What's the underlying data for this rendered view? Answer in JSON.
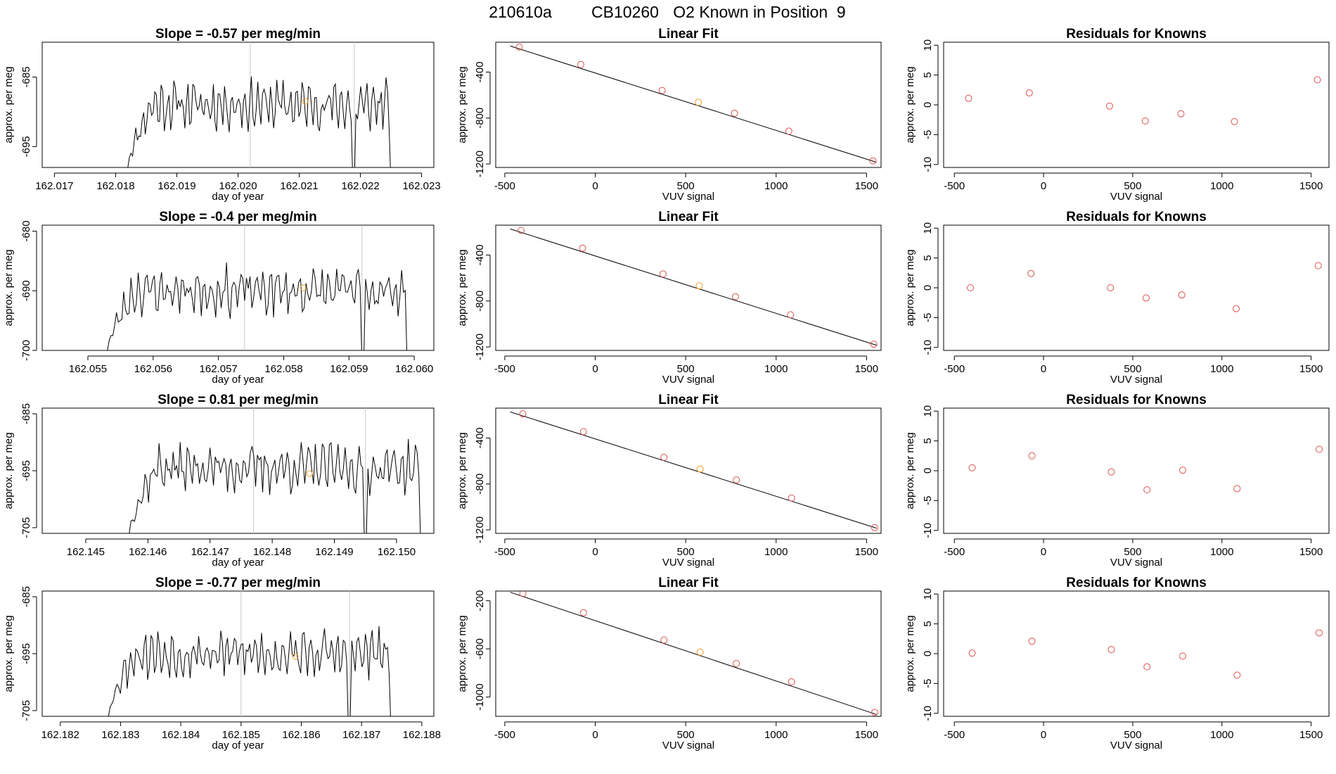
{
  "title": {
    "run_id": "210610a",
    "cylinder": "CB10260",
    "description": "O2 Known in Position  9"
  },
  "colors": {
    "trace": "#000000",
    "guide": "#c8c8c8",
    "point": "#d9534f",
    "highlight": "#f0a020"
  },
  "chart_data": [
    {
      "type": "line",
      "row": 0,
      "col": 0,
      "title": "Slope =  -0.57  per meg/min",
      "xlabel": "day of year",
      "ylabel": "approx. per meg",
      "xlim": [
        162.0168,
        162.0232
      ],
      "ylim": [
        -698,
        -680
      ],
      "xticks": [
        162.017,
        162.018,
        162.019,
        162.02,
        162.021,
        162.022,
        162.023
      ],
      "xtick_labels": [
        "162.017",
        "162.018",
        "162.019",
        "162.020",
        "162.021",
        "162.022",
        "162.023"
      ],
      "yticks": [
        -685,
        -695
      ],
      "ytick_labels": [
        "-685",
        "-695"
      ],
      "vlines": [
        162.0202,
        162.0219
      ],
      "trace_range": [
        162.0182,
        162.0226
      ],
      "trace_center": -689,
      "trace_amp": 2.6,
      "gaps": [
        162.0219
      ],
      "edge_low": -698,
      "seed": 11,
      "highlight_point": {
        "x": 162.0211,
        "y": -688.5
      }
    },
    {
      "type": "scatter",
      "row": 0,
      "col": 1,
      "title": "Linear Fit",
      "xlabel": "VUV signal",
      "ylabel": "approx. per meg",
      "xlim": [
        -550,
        1580
      ],
      "ylim": [
        -1230,
        -140
      ],
      "xticks": [
        -500,
        0,
        500,
        1000,
        1500
      ],
      "xtick_labels": [
        "-500",
        "0",
        "500",
        "1000",
        "1500"
      ],
      "yticks": [
        -400,
        -800,
        -1200
      ],
      "ytick_labels": [
        "-400",
        "-800",
        "-1200"
      ],
      "fit": {
        "x": [
          -470,
          1555
        ],
        "y": [
          -173,
          -1185
        ]
      },
      "points": [
        {
          "x": -420,
          "y": -183
        },
        {
          "x": -80,
          "y": -335
        },
        {
          "x": 370,
          "y": -560
        },
        {
          "x": 570,
          "y": -663,
          "highlight": true
        },
        {
          "x": 770,
          "y": -758
        },
        {
          "x": 1070,
          "y": -914
        },
        {
          "x": 1535,
          "y": -1172
        }
      ]
    },
    {
      "type": "scatter",
      "row": 0,
      "col": 2,
      "title": "Residuals for Knowns",
      "xlabel": "VUV signal",
      "ylabel": "approx. per meg",
      "xlim": [
        -560,
        1600
      ],
      "ylim": [
        -10.5,
        10.5
      ],
      "xticks": [
        -500,
        0,
        500,
        1000,
        1500
      ],
      "xtick_labels": [
        "-500",
        "0",
        "500",
        "1000",
        "1500"
      ],
      "yticks": [
        10,
        5,
        0,
        -5,
        -10
      ],
      "ytick_labels": [
        "10",
        "5",
        "0",
        "-5",
        "-10"
      ],
      "points": [
        {
          "x": -420,
          "y": 1.1
        },
        {
          "x": -80,
          "y": 2.0
        },
        {
          "x": 370,
          "y": -0.2
        },
        {
          "x": 570,
          "y": -2.7
        },
        {
          "x": 770,
          "y": -1.5
        },
        {
          "x": 1070,
          "y": -2.8
        },
        {
          "x": 1535,
          "y": 4.2
        }
      ]
    },
    {
      "type": "line",
      "row": 1,
      "col": 0,
      "title": "Slope =  -0.4  per meg/min",
      "xlabel": "day of year",
      "ylabel": "approx. per meg",
      "xlim": [
        162.0543,
        162.0603
      ],
      "ylim": [
        -700,
        -679
      ],
      "xticks": [
        162.055,
        162.056,
        162.057,
        162.058,
        162.059,
        162.06
      ],
      "xtick_labels": [
        "162.055",
        "162.056",
        "162.057",
        "162.058",
        "162.059",
        "162.060"
      ],
      "yticks": [
        -680,
        -690,
        -700
      ],
      "ytick_labels": [
        "-680",
        "-690",
        "-700"
      ],
      "vlines": [
        162.0574,
        162.0592
      ],
      "trace_range": [
        162.0553,
        162.06
      ],
      "trace_center": -690,
      "trace_amp": 3.0,
      "gaps": [
        162.0592
      ],
      "edge_low": -700,
      "seed": 23,
      "highlight_point": {
        "x": 162.0583,
        "y": -689.5
      }
    },
    {
      "type": "scatter",
      "row": 1,
      "col": 1,
      "title": "Linear Fit",
      "xlabel": "VUV signal",
      "ylabel": "approx. per meg",
      "xlim": [
        -550,
        1580
      ],
      "ylim": [
        -1230,
        -140
      ],
      "xticks": [
        -500,
        0,
        500,
        1000,
        1500
      ],
      "xtick_labels": [
        "-500",
        "0",
        "500",
        "1000",
        "1500"
      ],
      "yticks": [
        -400,
        -800,
        -1200
      ],
      "ytick_labels": [
        "-400",
        "-800",
        "-1200"
      ],
      "fit": {
        "x": [
          -470,
          1555
        ],
        "y": [
          -173,
          -1185
        ]
      },
      "points": [
        {
          "x": -410,
          "y": -186
        },
        {
          "x": -70,
          "y": -340
        },
        {
          "x": 375,
          "y": -565
        },
        {
          "x": 575,
          "y": -668,
          "highlight": true
        },
        {
          "x": 775,
          "y": -762
        },
        {
          "x": 1080,
          "y": -920
        },
        {
          "x": 1540,
          "y": -1176
        }
      ]
    },
    {
      "type": "scatter",
      "row": 1,
      "col": 2,
      "title": "Residuals for Knowns",
      "xlabel": "VUV signal",
      "ylabel": "approx. per meg",
      "xlim": [
        -560,
        1600
      ],
      "ylim": [
        -10.5,
        10.5
      ],
      "xticks": [
        -500,
        0,
        500,
        1000,
        1500
      ],
      "xtick_labels": [
        "-500",
        "0",
        "500",
        "1000",
        "1500"
      ],
      "yticks": [
        10,
        5,
        0,
        -5,
        -10
      ],
      "ytick_labels": [
        "10",
        "5",
        "0",
        "-5",
        "-10"
      ],
      "points": [
        {
          "x": -410,
          "y": 0.0
        },
        {
          "x": -70,
          "y": 2.4
        },
        {
          "x": 375,
          "y": 0.0
        },
        {
          "x": 575,
          "y": -1.7
        },
        {
          "x": 775,
          "y": -1.2
        },
        {
          "x": 1080,
          "y": -3.5
        },
        {
          "x": 1540,
          "y": 3.7
        }
      ]
    },
    {
      "type": "line",
      "row": 2,
      "col": 0,
      "title": "Slope =  0.81  per meg/min",
      "xlabel": "day of year",
      "ylabel": "approx. per meg",
      "xlim": [
        162.1443,
        162.1506
      ],
      "ylim": [
        -706,
        -684
      ],
      "xticks": [
        162.145,
        162.146,
        162.147,
        162.148,
        162.149,
        162.15
      ],
      "xtick_labels": [
        "162.145",
        "162.146",
        "162.147",
        "162.148",
        "162.149",
        "162.150"
      ],
      "yticks": [
        -685,
        -695,
        -705
      ],
      "ytick_labels": [
        "-685",
        "-695",
        "-705"
      ],
      "vlines": [
        162.1477,
        162.1495
      ],
      "trace_range": [
        162.1457,
        162.1505
      ],
      "trace_center": -694.5,
      "trace_amp": 3.2,
      "gaps": [
        162.1495
      ],
      "edge_low": -706,
      "seed": 37,
      "highlight_point": {
        "x": 162.1486,
        "y": -695.5
      }
    },
    {
      "type": "scatter",
      "row": 2,
      "col": 1,
      "title": "Linear Fit",
      "xlabel": "VUV signal",
      "ylabel": "approx. per meg",
      "xlim": [
        -550,
        1580
      ],
      "ylim": [
        -1230,
        -140
      ],
      "xticks": [
        -500,
        0,
        500,
        1000,
        1500
      ],
      "xtick_labels": [
        "-500",
        "0",
        "500",
        "1000",
        "1500"
      ],
      "yticks": [
        -400,
        -800,
        -1200
      ],
      "ytick_labels": [
        "-400",
        "-800",
        "-1200"
      ],
      "fit": {
        "x": [
          -470,
          1555
        ],
        "y": [
          -173,
          -1185
        ]
      },
      "points": [
        {
          "x": -400,
          "y": -190
        },
        {
          "x": -65,
          "y": -345
        },
        {
          "x": 380,
          "y": -568
        },
        {
          "x": 580,
          "y": -670,
          "highlight": true
        },
        {
          "x": 780,
          "y": -765
        },
        {
          "x": 1085,
          "y": -923
        },
        {
          "x": 1545,
          "y": -1180
        }
      ]
    },
    {
      "type": "scatter",
      "row": 2,
      "col": 2,
      "title": "Residuals for Knowns",
      "xlabel": "VUV signal",
      "ylabel": "approx. per meg",
      "xlim": [
        -560,
        1600
      ],
      "ylim": [
        -10.5,
        10.5
      ],
      "xticks": [
        -500,
        0,
        500,
        1000,
        1500
      ],
      "xtick_labels": [
        "-500",
        "0",
        "500",
        "1000",
        "1500"
      ],
      "yticks": [
        10,
        5,
        0,
        -5,
        -10
      ],
      "ytick_labels": [
        "10",
        "5",
        "0",
        "-5",
        "-10"
      ],
      "points": [
        {
          "x": -400,
          "y": 0.5
        },
        {
          "x": -65,
          "y": 2.5
        },
        {
          "x": 380,
          "y": -0.2
        },
        {
          "x": 580,
          "y": -3.2
        },
        {
          "x": 780,
          "y": 0.1
        },
        {
          "x": 1085,
          "y": -3.0
        },
        {
          "x": 1545,
          "y": 3.6
        }
      ]
    },
    {
      "type": "line",
      "row": 3,
      "col": 0,
      "title": "Slope =  -0.77  per meg/min",
      "xlabel": "day of year",
      "ylabel": "approx. per meg",
      "xlim": [
        162.1817,
        162.1882
      ],
      "ylim": [
        -706,
        -684
      ],
      "xticks": [
        162.182,
        162.183,
        162.184,
        162.185,
        162.186,
        162.187,
        162.188
      ],
      "xtick_labels": [
        "162.182",
        "162.183",
        "162.184",
        "162.185",
        "162.186",
        "162.187",
        "162.188"
      ],
      "yticks": [
        -685,
        -695,
        -705
      ],
      "ytick_labels": [
        "-685",
        "-695",
        "-705"
      ],
      "vlines": [
        162.185,
        162.1868
      ],
      "trace_range": [
        162.1828,
        162.1876
      ],
      "trace_center": -695,
      "trace_amp": 3.2,
      "gaps": [
        162.1868
      ],
      "edge_low": -706,
      "seed": 53,
      "highlight_point": {
        "x": 162.1859,
        "y": -695.5
      }
    },
    {
      "type": "scatter",
      "row": 3,
      "col": 1,
      "title": "Linear Fit",
      "xlabel": "VUV signal",
      "ylabel": "approx. per meg",
      "xlim": [
        -550,
        1580
      ],
      "ylim": [
        -1160,
        -120
      ],
      "xticks": [
        -500,
        0,
        500,
        1000,
        1500
      ],
      "xtick_labels": [
        "-500",
        "0",
        "500",
        "1000",
        "1500"
      ],
      "yticks": [
        -200,
        -600,
        -1000
      ],
      "ytick_labels": [
        "-200",
        "-600",
        "-1000"
      ],
      "fit": {
        "x": [
          -470,
          1555
        ],
        "y": [
          -130,
          -1145
        ]
      },
      "points": [
        {
          "x": -400,
          "y": -140
        },
        {
          "x": -65,
          "y": -300
        },
        {
          "x": 380,
          "y": -527
        },
        {
          "x": 580,
          "y": -627,
          "highlight": true
        },
        {
          "x": 780,
          "y": -722
        },
        {
          "x": 1085,
          "y": -874
        },
        {
          "x": 1545,
          "y": -1128
        }
      ]
    },
    {
      "type": "scatter",
      "row": 3,
      "col": 2,
      "title": "Residuals for Knowns",
      "xlabel": "VUV signal",
      "ylabel": "approx. per meg",
      "xlim": [
        -560,
        1600
      ],
      "ylim": [
        -10.5,
        10.5
      ],
      "xticks": [
        -500,
        0,
        500,
        1000,
        1500
      ],
      "xtick_labels": [
        "-500",
        "0",
        "500",
        "1000",
        "1500"
      ],
      "yticks": [
        10,
        5,
        0,
        -5,
        -10
      ],
      "ytick_labels": [
        "10",
        "5",
        "0",
        "-5",
        "-10"
      ],
      "points": [
        {
          "x": -400,
          "y": 0.1
        },
        {
          "x": -65,
          "y": 2.1
        },
        {
          "x": 380,
          "y": 0.7
        },
        {
          "x": 580,
          "y": -2.2
        },
        {
          "x": 780,
          "y": -0.4
        },
        {
          "x": 1085,
          "y": -3.6
        },
        {
          "x": 1545,
          "y": 3.5
        }
      ]
    }
  ]
}
